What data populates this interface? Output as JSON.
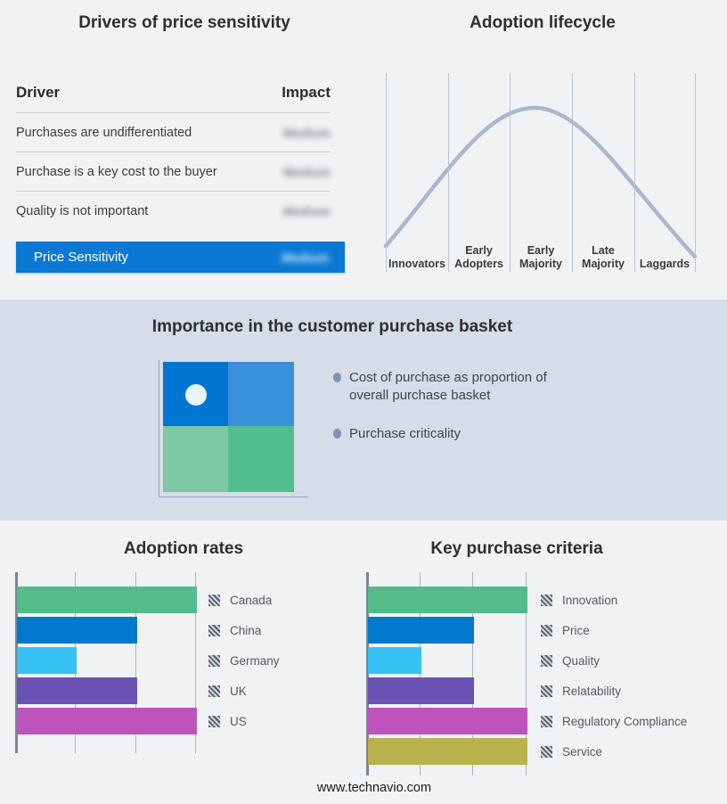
{
  "page": {
    "background": "#f1f2f4",
    "band_background": "#d4dde8",
    "footer_url": "www.technavio.com"
  },
  "chart_data": [
    {
      "id": "drivers-of-price-sensitivity",
      "type": "table",
      "title": "Drivers of price sensitivity",
      "columns": [
        "Driver",
        "Impact"
      ],
      "rows": [
        [
          "Purchases are undifferentiated",
          "Medium"
        ],
        [
          "Purchase is a key cost to the buyer",
          "Medium"
        ],
        [
          "Quality is not important",
          "Medium"
        ],
        [
          "Price Sensitivity",
          "Medium"
        ]
      ],
      "impact_values_blurred": true,
      "highlight_row": "Price Sensitivity",
      "highlight_color": "#0b79d4"
    },
    {
      "id": "adoption-lifecycle",
      "type": "line",
      "title": "Adoption lifecycle",
      "categories": [
        "Innovators",
        "Early Adopters",
        "Early Majority",
        "Late Majority",
        "Laggards"
      ],
      "curve": "bell",
      "peak_category": "Early Majority",
      "relative_height_at_stage_boundaries": [
        0.1,
        0.5,
        1.0,
        0.82,
        0.45,
        0.05
      ],
      "line_color": "#a9b8cd",
      "gridline_color": "#b8c3d6"
    },
    {
      "id": "importance-in-customer-purchase-basket",
      "type": "heatmap",
      "title": "Importance in the customer purchase basket",
      "grid": [
        2,
        2
      ],
      "quadrant_colors": [
        [
          "#0076d2",
          "#3a90da"
        ],
        [
          "#7ec7a4",
          "#54bd8d"
        ]
      ],
      "marker": {
        "quadrant": "top-left",
        "color": "#e9f4fb"
      },
      "bullets": [
        "Cost of purchase as proportion of overall purchase basket",
        "Purchase criticality"
      ]
    },
    {
      "id": "adoption-rates",
      "type": "bar",
      "orientation": "horizontal",
      "title": "Adoption rates",
      "categories": [
        "Canada",
        "China",
        "Germany",
        "UK",
        "US"
      ],
      "values": [
        3,
        2,
        1,
        2,
        3
      ],
      "xlim": [
        0,
        3
      ],
      "gridlines": true,
      "legend_position": "right",
      "colors": [
        "#54bb8b",
        "#0079cd",
        "#35c2f2",
        "#6a52b5",
        "#bd54bb"
      ]
    },
    {
      "id": "key-purchase-criteria",
      "type": "bar",
      "orientation": "horizontal",
      "title": "Key purchase criteria",
      "categories": [
        "Innovation",
        "Price",
        "Quality",
        "Relatability",
        "Regulatory Compliance",
        "Service"
      ],
      "values": [
        3,
        2,
        1,
        2,
        3,
        3
      ],
      "xlim": [
        0,
        3
      ],
      "gridlines": true,
      "legend_position": "right",
      "colors": [
        "#54bb8b",
        "#0079cd",
        "#35c2f2",
        "#6a52b5",
        "#bd54bb",
        "#b9b14b"
      ]
    }
  ]
}
